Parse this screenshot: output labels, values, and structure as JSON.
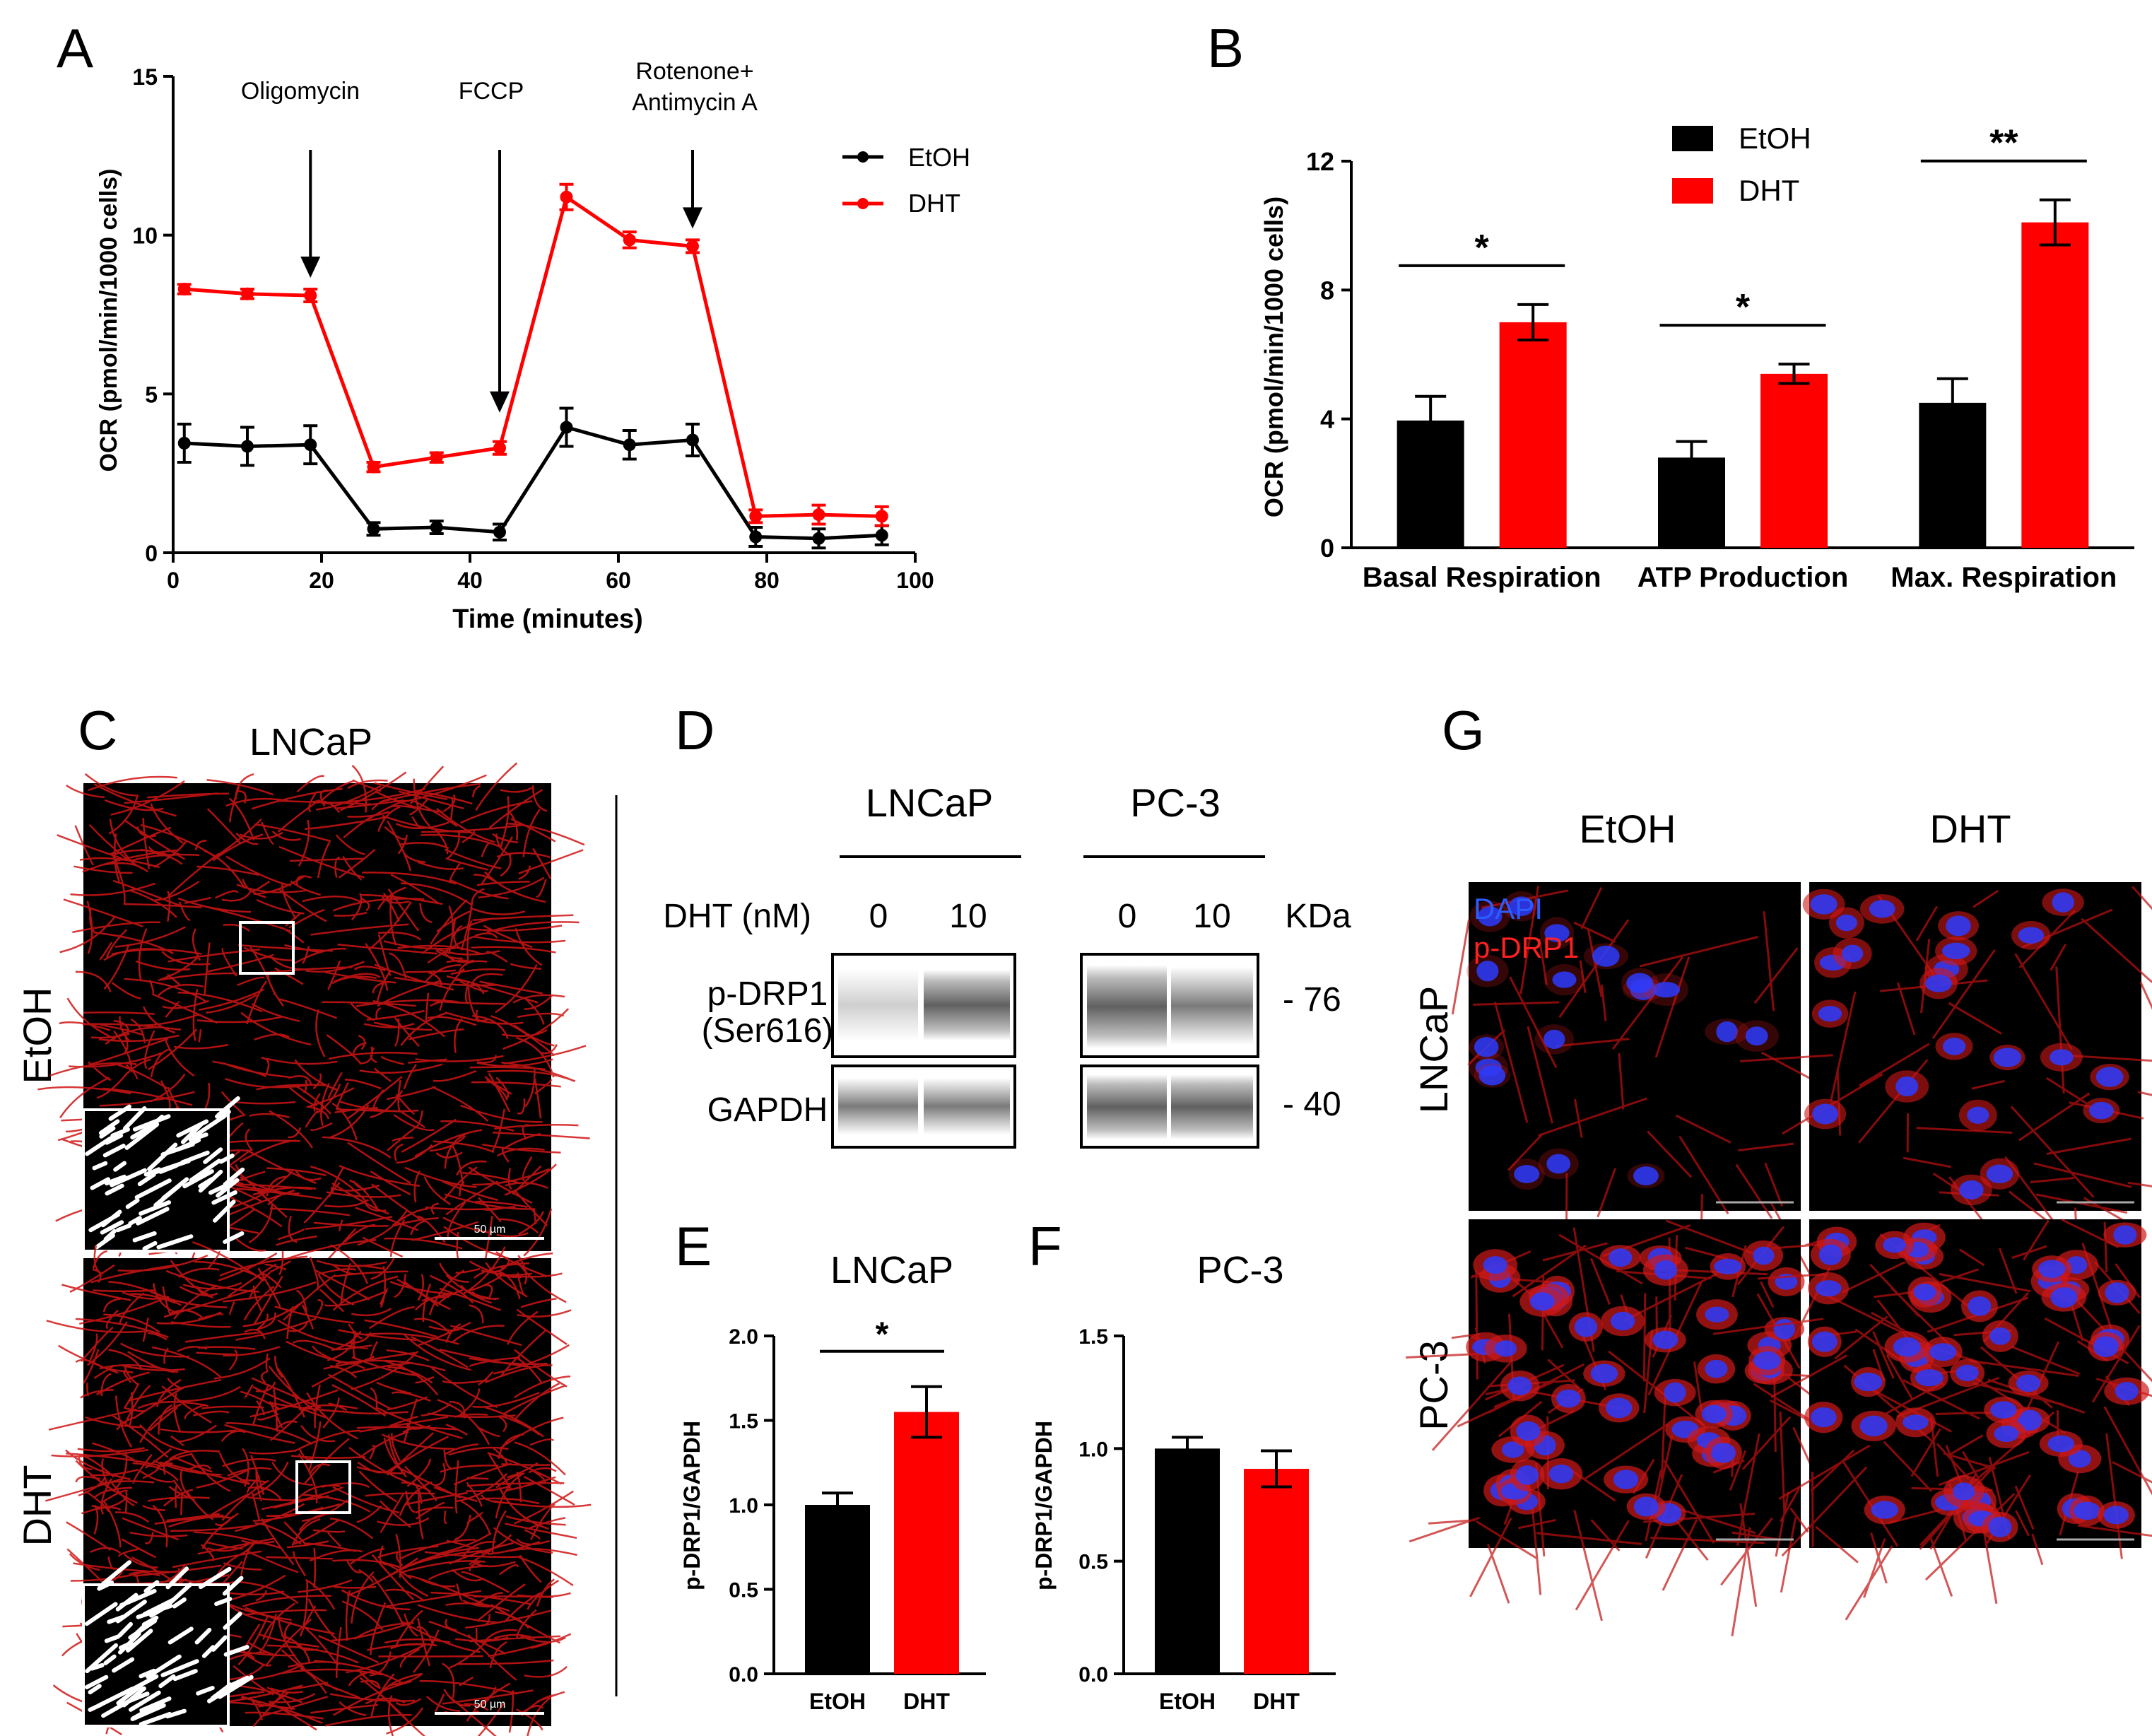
{
  "panel_letters": {
    "A": "A",
    "B": "B",
    "C": "C",
    "D": "D",
    "E": "E",
    "F": "F",
    "G": "G"
  },
  "colors": {
    "etoh": "#000000",
    "dht": "#ff0000",
    "dapi": "#1f4fff",
    "mito": "#e01010"
  },
  "panelA": {
    "chart_data": {
      "type": "line",
      "xlabel": "Time (minutes)",
      "ylabel": "OCR (pmol/min/1000 cells)",
      "xlim": [
        0,
        100
      ],
      "ylim": [
        0,
        15
      ],
      "xticks": [
        0,
        20,
        40,
        60,
        80,
        100
      ],
      "yticks": [
        0,
        5,
        10,
        15
      ],
      "legend_position": "top-right",
      "series": [
        {
          "name": "EtOH",
          "color": "#000000",
          "x": [
            1.5,
            10,
            18.5,
            27,
            35.5,
            44,
            53,
            61.5,
            70,
            78.5,
            87,
            95.5
          ],
          "y": [
            3.45,
            3.35,
            3.4,
            0.75,
            0.8,
            0.65,
            3.95,
            3.4,
            3.55,
            0.5,
            0.45,
            0.55
          ],
          "err": [
            0.6,
            0.6,
            0.6,
            0.2,
            0.2,
            0.25,
            0.6,
            0.45,
            0.5,
            0.3,
            0.3,
            0.3
          ]
        },
        {
          "name": "DHT",
          "color": "#ff0000",
          "x": [
            1.5,
            10,
            18.5,
            27,
            35.5,
            44,
            53,
            61.5,
            70,
            78.5,
            87,
            95.5
          ],
          "y": [
            8.3,
            8.15,
            8.1,
            2.7,
            3.0,
            3.3,
            11.2,
            9.85,
            9.65,
            1.15,
            1.2,
            1.15
          ],
          "err": [
            0.15,
            0.15,
            0.2,
            0.15,
            0.15,
            0.2,
            0.4,
            0.25,
            0.2,
            0.2,
            0.3,
            0.3
          ]
        }
      ],
      "annotations": [
        {
          "text": "Oligomycin",
          "x": 18.5
        },
        {
          "text": "FCCP",
          "x": 44
        },
        {
          "text": "Rotenone+",
          "text2": "Antimycin A",
          "x": 70
        }
      ]
    }
  },
  "panelB": {
    "chart_data": {
      "type": "bar",
      "ylabel": "OCR (pmol/min/1000 cells)",
      "ylim": [
        0,
        12
      ],
      "yticks": [
        0,
        4,
        8,
        12
      ],
      "categories": [
        "Basal Respiration",
        "ATP Production",
        "Max. Respiration"
      ],
      "legend_position": "top",
      "series": [
        {
          "name": "EtOH",
          "color": "#000000",
          "values": [
            3.95,
            2.8,
            4.5
          ],
          "err": [
            0.75,
            0.5,
            0.75
          ]
        },
        {
          "name": "DHT",
          "color": "#ff0000",
          "values": [
            7.0,
            5.4,
            10.1
          ],
          "err": [
            0.55,
            0.3,
            0.7
          ]
        }
      ],
      "significance": [
        "*",
        "*",
        "**"
      ]
    }
  },
  "panelC": {
    "title": "LNCaP",
    "rows": [
      "EtOH",
      "DHT"
    ],
    "scale_label": "50 µm"
  },
  "panelD": {
    "groups": [
      "LNCaP",
      "PC-3"
    ],
    "dht_label": "DHT (nM)",
    "doses": [
      "0",
      "10",
      "0",
      "10"
    ],
    "kda_label": "KDa",
    "row1_line1": "p-DRP1",
    "row1_line2": "(Ser616)",
    "row2": "GAPDH",
    "mw": [
      "- 76",
      "- 40"
    ]
  },
  "panelE": {
    "title": "LNCaP",
    "chart_data": {
      "type": "bar",
      "ylabel": "p-DRP1/GAPDH",
      "ylim": [
        0,
        2.0
      ],
      "yticks": [
        "0.0",
        "0.5",
        "1.0",
        "1.5",
        "2.0"
      ],
      "categories": [
        "EtOH",
        "DHT"
      ],
      "values": [
        1.0,
        1.55
      ],
      "err": [
        0.07,
        0.15
      ],
      "colors": [
        "#000000",
        "#ff0000"
      ],
      "significance": "*"
    }
  },
  "panelF": {
    "title": "PC-3",
    "chart_data": {
      "type": "bar",
      "ylabel": "p-DRP1/GAPDH",
      "ylim": [
        0,
        1.5
      ],
      "yticks": [
        "0.0",
        "0.5",
        "1.0",
        "1.5"
      ],
      "categories": [
        "EtOH",
        "DHT"
      ],
      "values": [
        1.0,
        0.91
      ],
      "err": [
        0.05,
        0.08
      ],
      "colors": [
        "#000000",
        "#ff0000"
      ]
    }
  },
  "panelG": {
    "cols": [
      "EtOH",
      "DHT"
    ],
    "rows": [
      "LNCaP",
      "PC-3"
    ],
    "legend_dapi": "DAPI",
    "legend_pdrp1": "p-DRP1"
  }
}
